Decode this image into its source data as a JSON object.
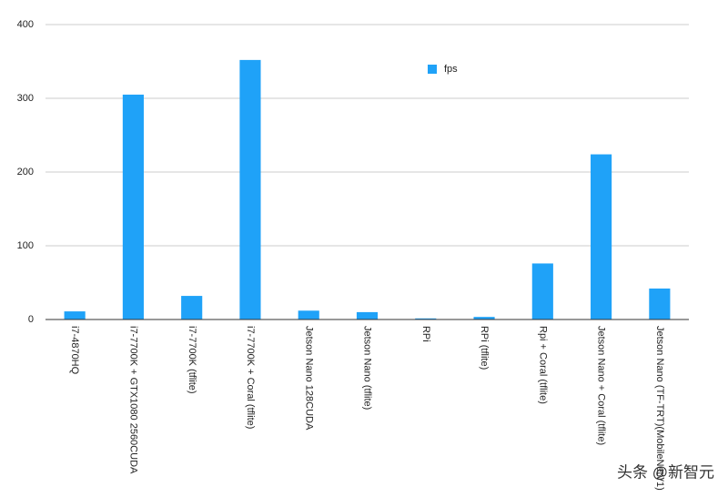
{
  "chart_data": {
    "type": "bar",
    "categories": [
      "i7-4870HQ",
      "i7-7700K + GTX1080 2560CUDA",
      "i7-7700K (tflite)",
      "i7-7700K + Coral (tflite)",
      "Jetson Nano 128CUDA",
      "Jetson Nano (tflite)",
      "RPi",
      "RPi (tflite)",
      "Rpi + Coral (tflite)",
      "Jetson Nano + Coral (tflite)",
      "Jetson Nano (TF-TRT)(MobileNetV1)"
    ],
    "series": [
      {
        "name": "fps",
        "color": "#1fa2f8",
        "values": [
          11,
          305,
          32,
          352,
          12,
          10,
          1.5,
          3.5,
          76,
          224,
          42
        ]
      }
    ],
    "ylim": [
      0,
      400
    ],
    "yticks": [
      0,
      100,
      200,
      300,
      400
    ],
    "grid": true,
    "legend": "top-center",
    "watermark": "头条 @新智元"
  }
}
